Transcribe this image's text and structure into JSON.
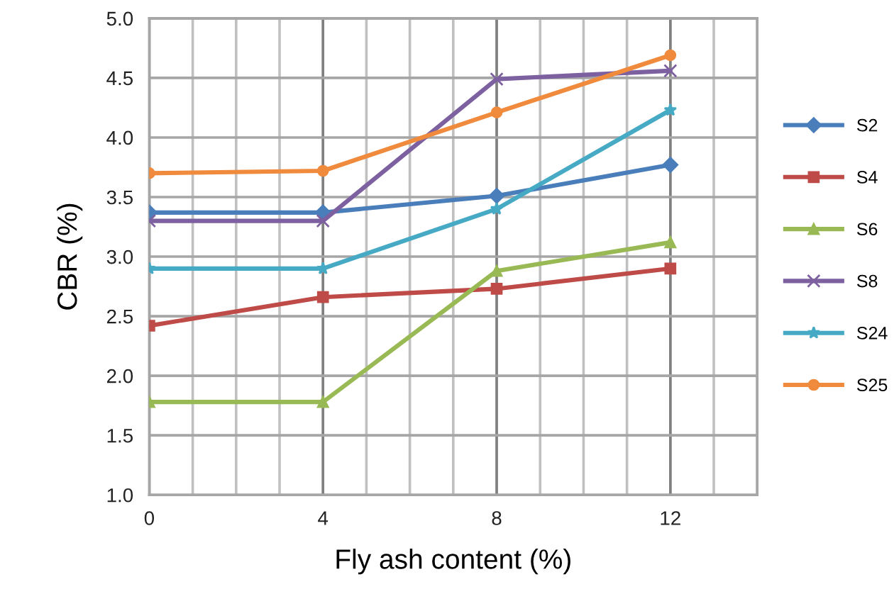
{
  "chart_data": {
    "type": "line",
    "xlabel": "Fly ash content (%)",
    "ylabel": "CBR (%)",
    "x": [
      0,
      4,
      8,
      12
    ],
    "series": [
      {
        "name": "S2",
        "color": "#4a7ebb",
        "marker": "diamond",
        "values": [
          3.37,
          3.37,
          3.51,
          3.77
        ]
      },
      {
        "name": "S4",
        "color": "#be4b48",
        "marker": "square",
        "values": [
          2.42,
          2.66,
          2.73,
          2.9
        ]
      },
      {
        "name": "S6",
        "color": "#98b954",
        "marker": "triangle",
        "values": [
          1.78,
          1.78,
          2.88,
          3.12
        ]
      },
      {
        "name": "S8",
        "color": "#7d60a0",
        "marker": "cross",
        "values": [
          3.3,
          3.3,
          4.49,
          4.56
        ]
      },
      {
        "name": "S24",
        "color": "#46aac5",
        "marker": "star",
        "values": [
          2.9,
          2.9,
          3.4,
          4.23
        ]
      },
      {
        "name": "S25",
        "color": "#f08a3c",
        "marker": "circle",
        "values": [
          3.7,
          3.72,
          4.21,
          4.69
        ]
      }
    ],
    "xlim": [
      0,
      14
    ],
    "xticks": [
      0,
      4,
      8,
      12
    ],
    "ylim": [
      1.0,
      5.0
    ],
    "yticks": [
      {
        "value": 1.0,
        "label": "1.0"
      },
      {
        "value": 1.5,
        "label": "1.5"
      },
      {
        "value": 2.0,
        "label": "2.0"
      },
      {
        "value": 2.5,
        "label": "2.5"
      },
      {
        "value": 3.0,
        "label": "3.0"
      },
      {
        "value": 3.5,
        "label": "3.5"
      },
      {
        "value": 4.0,
        "label": "4.0"
      },
      {
        "value": 4.5,
        "label": "4.5"
      },
      {
        "value": 5.0,
        "label": "5.0"
      }
    ],
    "grid": true,
    "legend": "right",
    "line_style": "solid"
  }
}
